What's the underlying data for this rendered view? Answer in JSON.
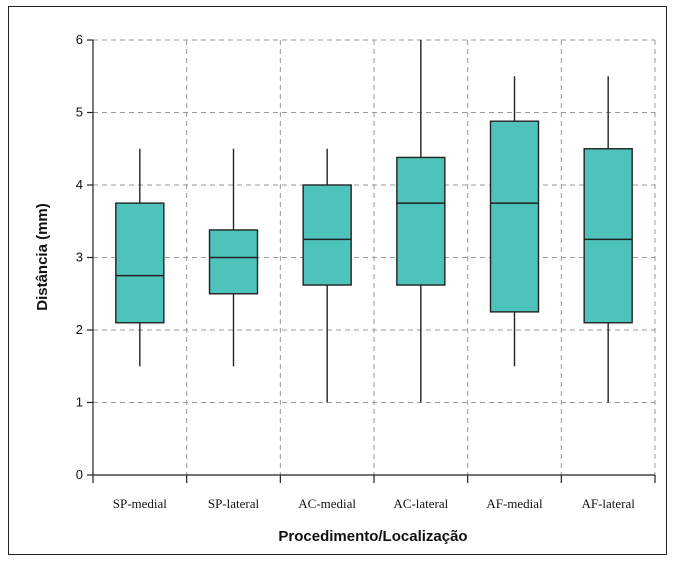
{
  "chart_data": {
    "type": "box",
    "title": "",
    "xlabel": "Procedimento/Localização",
    "ylabel": "Distância (mm)",
    "ylim": [
      0,
      6
    ],
    "yticks": [
      "0",
      "1",
      "2",
      "3",
      "4",
      "5",
      "6"
    ],
    "grid": true,
    "colors": {
      "box_fill": "#4ec3bb",
      "stroke": "#222222",
      "grid": "#9a9a9a"
    },
    "categories": [
      "SP-medial",
      "SP-lateral",
      "AC-medial",
      "AC-lateral",
      "AF-medial",
      "AF-lateral"
    ],
    "boxes": [
      {
        "min": 1.5,
        "q1": 2.1,
        "median": 2.75,
        "q3": 3.75,
        "max": 4.5
      },
      {
        "min": 1.5,
        "q1": 2.5,
        "median": 3.0,
        "q3": 3.38,
        "max": 4.5
      },
      {
        "min": 1.0,
        "q1": 2.62,
        "median": 3.25,
        "q3": 4.0,
        "max": 4.5
      },
      {
        "min": 1.0,
        "q1": 2.62,
        "median": 3.75,
        "q3": 4.38,
        "max": 6.0
      },
      {
        "min": 1.5,
        "q1": 2.25,
        "median": 3.75,
        "q3": 4.88,
        "max": 5.5
      },
      {
        "min": 1.0,
        "q1": 2.1,
        "median": 3.25,
        "q3": 4.5,
        "max": 5.5
      }
    ]
  }
}
